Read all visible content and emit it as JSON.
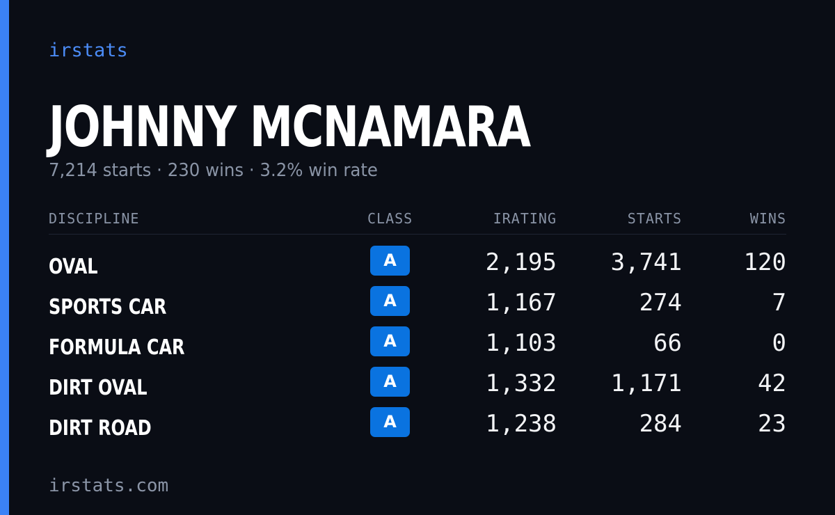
{
  "brand": "irstats",
  "driver": {
    "name": "JOHNNY MCNAMARA",
    "summary": "7,214 starts · 230 wins · 3.2% win rate"
  },
  "table": {
    "headers": {
      "discipline": "DISCIPLINE",
      "class": "CLASS",
      "irating": "IRATING",
      "starts": "STARTS",
      "wins": "WINS"
    },
    "rows": [
      {
        "discipline": "OVAL",
        "class": "A",
        "irating": "2,195",
        "starts": "3,741",
        "wins": "120"
      },
      {
        "discipline": "SPORTS CAR",
        "class": "A",
        "irating": "1,167",
        "starts": "274",
        "wins": "7"
      },
      {
        "discipline": "FORMULA CAR",
        "class": "A",
        "irating": "1,103",
        "starts": "66",
        "wins": "0"
      },
      {
        "discipline": "DIRT OVAL",
        "class": "A",
        "irating": "1,332",
        "starts": "1,171",
        "wins": "42"
      },
      {
        "discipline": "DIRT ROAD",
        "class": "A",
        "irating": "1,238",
        "starts": "284",
        "wins": "23"
      }
    ]
  },
  "footer": "irstats.com",
  "colors": {
    "background": "#0a0d15",
    "accent": "#3b82f6",
    "badge": "#0a73e0",
    "muted": "#8a94a6"
  }
}
